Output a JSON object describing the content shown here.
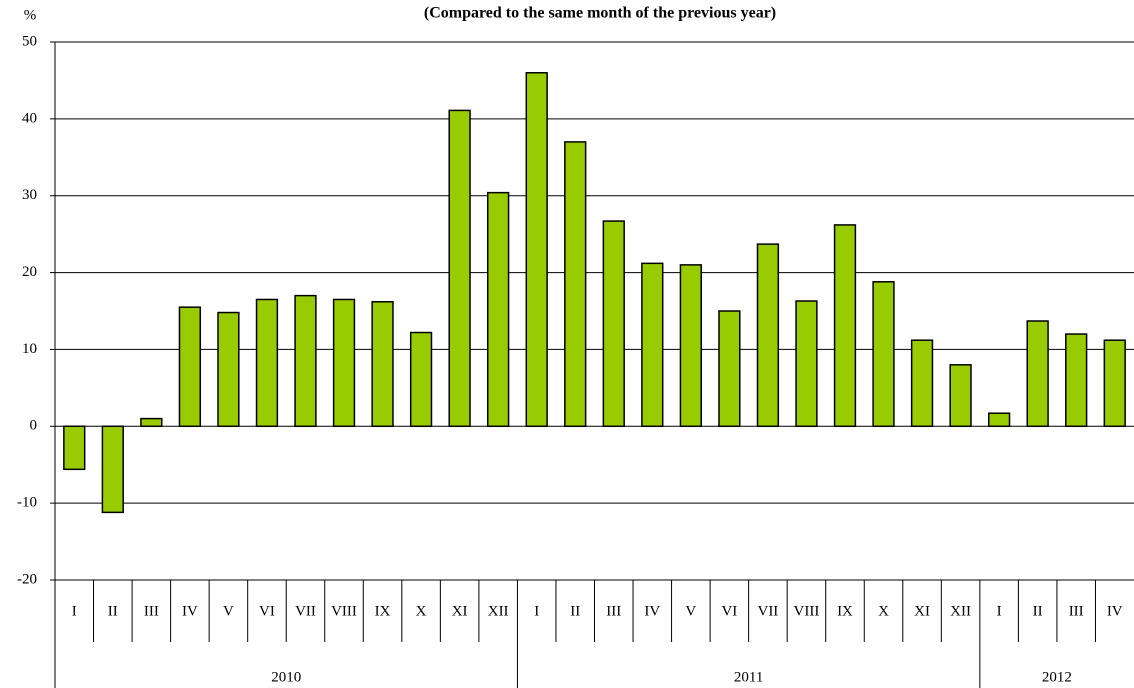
{
  "chart_data": {
    "type": "bar",
    "title": "(Compared to the same month of the previous year)",
    "y_label": "%",
    "groups": [
      {
        "label": "2010",
        "categories": [
          "I",
          "II",
          "III",
          "IV",
          "V",
          "VI",
          "VII",
          "VIII",
          "IX",
          "X",
          "XI",
          "XII"
        ]
      },
      {
        "label": "2011",
        "categories": [
          "I",
          "II",
          "III",
          "IV",
          "V",
          "VI",
          "VII",
          "VIII",
          "IX",
          "X",
          "XI",
          "XII"
        ]
      },
      {
        "label": "2012",
        "categories": [
          "I",
          "II",
          "III",
          "IV"
        ]
      }
    ],
    "values": [
      -5.6,
      -11.2,
      1.0,
      15.5,
      14.8,
      16.5,
      17.0,
      16.5,
      16.2,
      12.2,
      41.1,
      30.4,
      46.0,
      37.0,
      26.7,
      21.2,
      21.0,
      15.0,
      23.7,
      16.3,
      26.2,
      18.8,
      11.2,
      8.0,
      1.7,
      13.7,
      12.0,
      11.2
    ],
    "color": "#99cc00",
    "ylim": [
      -20,
      50
    ],
    "yticks": [
      -20,
      -10,
      0,
      10,
      20,
      30,
      40,
      50
    ],
    "grid": true
  }
}
